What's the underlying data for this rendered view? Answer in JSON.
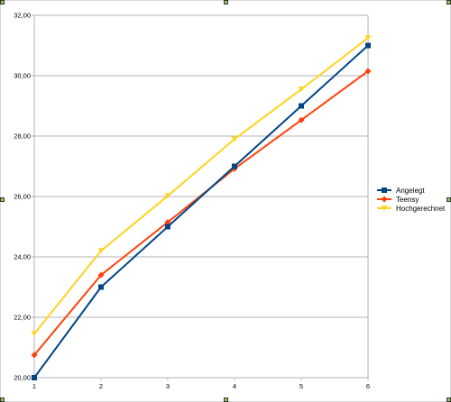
{
  "chart_data": {
    "type": "line",
    "title": "",
    "xlabel": "",
    "ylabel": "",
    "x": [
      1,
      2,
      3,
      4,
      5,
      6
    ],
    "x_tick_labels": [
      "1",
      "2",
      "3",
      "4",
      "5",
      "6"
    ],
    "ylim": [
      20,
      32
    ],
    "y_ticks": [
      20,
      22,
      24,
      26,
      28,
      30,
      32
    ],
    "y_tick_labels": [
      "20,00",
      "22,00",
      "24,00",
      "26,00",
      "28,00",
      "30,00",
      "32,00"
    ],
    "grid": "horizontal",
    "legend_position": "right",
    "series": [
      {
        "name": "Angelegt",
        "values": [
          20.0,
          23.0,
          25.0,
          27.0,
          29.0,
          31.0
        ],
        "color": "#004586",
        "marker": "square"
      },
      {
        "name": "Teensy",
        "values": [
          20.75,
          23.4,
          25.15,
          26.92,
          28.53,
          30.15
        ],
        "color": "#ff420e",
        "marker": "diamond"
      },
      {
        "name": "Hochgerechnet",
        "values": [
          21.45,
          24.2,
          26.02,
          27.9,
          29.55,
          31.25
        ],
        "color": "#ffd320",
        "marker": "triangle-down"
      }
    ]
  }
}
